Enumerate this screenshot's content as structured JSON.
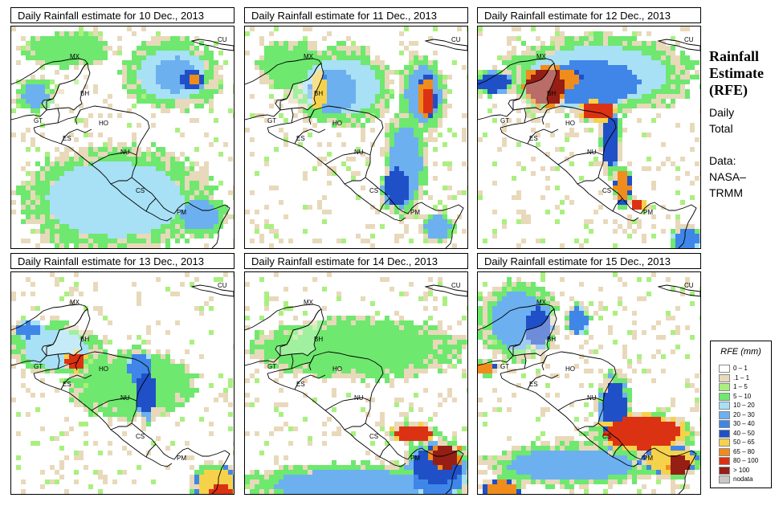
{
  "panels": [
    {
      "title": "Daily Rainfall estimate for  10 Dec., 2013"
    },
    {
      "title": "Daily Rainfall estimate for  11 Dec., 2013"
    },
    {
      "title": "Daily Rainfall estimate for  12 Dec., 2013"
    },
    {
      "title": "Daily Rainfall estimate for  13 Dec., 2013"
    },
    {
      "title": "Daily Rainfall estimate for  14 Dec., 2013"
    },
    {
      "title": "Daily Rainfall estimate for  15 Dec., 2013"
    }
  ],
  "country_labels": {
    "mx": "MX",
    "bh": "BH",
    "gt": "GT",
    "ho": "HO",
    "es": "ES",
    "nu": "NU",
    "cs": "CS",
    "pm": "PM",
    "cu": "CU"
  },
  "sidebar": {
    "title_line1": "Rainfall",
    "title_line2": "Estimate",
    "title_line3": "(RFE)",
    "daily": "Daily",
    "total": "Total",
    "data_label": "Data:",
    "source1": "NASA–",
    "source2": "TRMM"
  },
  "legend": {
    "title": "RFE (mm)",
    "items": [
      {
        "label": "0 – 1",
        "color": "#ffffff"
      },
      {
        "label": ".1 – 1",
        "color": "#e8d9bb"
      },
      {
        "label": "1 – 5",
        "color": "#a9f07f"
      },
      {
        "label": "5 – 10",
        "color": "#6ee86e"
      },
      {
        "label": "10 – 20",
        "color": "#a8e0f5"
      },
      {
        "label": "20 – 30",
        "color": "#6cb0f0"
      },
      {
        "label": "30 – 40",
        "color": "#3f86e8"
      },
      {
        "label": "40 – 50",
        "color": "#1f50c8"
      },
      {
        "label": "50 – 65",
        "color": "#f6d24a"
      },
      {
        "label": "65 – 80",
        "color": "#f08c1c"
      },
      {
        "label": "80 – 100",
        "color": "#dc3214"
      },
      {
        "label": "> 100",
        "color": "#961e14"
      },
      {
        "label": "nodata",
        "color": "#c8c8c8"
      }
    ]
  }
}
